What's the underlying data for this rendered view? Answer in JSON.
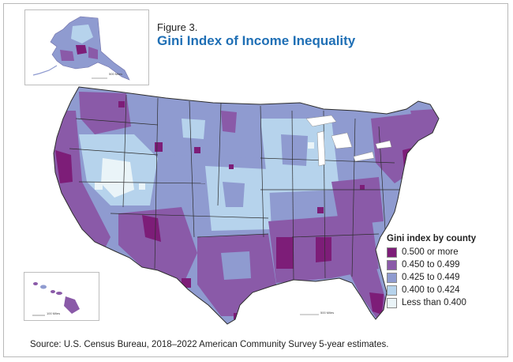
{
  "figure": {
    "label": "Figure 3.",
    "title": "Gini Index of Income Inequality"
  },
  "legend": {
    "title": "Gini index by county",
    "items": [
      {
        "label": "0.500 or more",
        "color": "#7d1d78"
      },
      {
        "label": "0.450 to 0.499",
        "color": "#8a5aa8"
      },
      {
        "label": "0.425 to 0.449",
        "color": "#8f9bd0"
      },
      {
        "label": "0.400 to 0.424",
        "color": "#b6d3ec"
      },
      {
        "label": "Less than 0.400",
        "color": "#eaf4f8"
      }
    ]
  },
  "insets": {
    "alaska_scale": "500 Miles",
    "hawaii_scale": "100 Miles",
    "conus_scale": "500 Miles"
  },
  "source": "Source: U.S. Census Bureau, 2018–2022 American Community Survey 5-year estimates."
}
